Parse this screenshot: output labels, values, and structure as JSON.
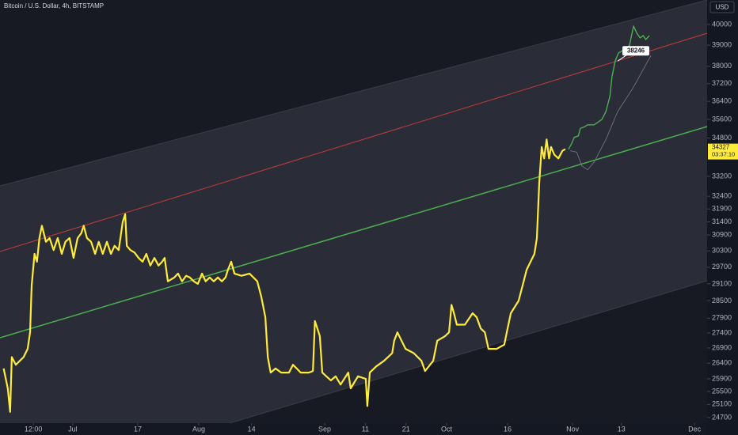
{
  "chart_data": {
    "type": "line",
    "title": "Bitcoin / U.S. Dollar, 4h, BITSTAMP",
    "currency": "USD",
    "log_scale": true,
    "xlim": [
      -17.9,
      156.1
    ],
    "xticks": [
      {
        "value": -9.7,
        "label": "12:00"
      },
      {
        "value": 0,
        "label": "Jul"
      },
      {
        "value": 16,
        "label": "17"
      },
      {
        "value": 31,
        "label": "Aug"
      },
      {
        "value": 44,
        "label": "14"
      },
      {
        "value": 62,
        "label": "Sep"
      },
      {
        "value": 72,
        "label": "11"
      },
      {
        "value": 82,
        "label": "21"
      },
      {
        "value": 92,
        "label": "Oct"
      },
      {
        "value": 107,
        "label": "16"
      },
      {
        "value": 123,
        "label": "Nov"
      },
      {
        "value": 135,
        "label": "13"
      },
      {
        "value": 153,
        "label": "Dec"
      }
    ],
    "ylim": [
      24530,
      41220
    ],
    "yticks": [
      40000,
      39000,
      38000,
      37200,
      36400,
      35600,
      34800,
      33200,
      32400,
      31900,
      31400,
      30900,
      30300,
      29700,
      29100,
      28500,
      27900,
      27400,
      26900,
      26400,
      25900,
      25500,
      25100,
      24700
    ],
    "series": [
      {
        "color": "#ffeb3b",
        "x": [
          -17.0,
          -16.0,
          -15.4,
          -15.0,
          -14.0,
          -12.1,
          -11.1,
          -10.5,
          -10.1,
          -9.4,
          -8.8,
          -8.2,
          -7.6,
          -6.6,
          -5.7,
          -4.7,
          -3.7,
          -2.7,
          -1.8,
          -0.8,
          0.2,
          1.2,
          2.1,
          2.7,
          3.5,
          4.5,
          5.5,
          6.4,
          7.4,
          8.4,
          9.4,
          10.3,
          11.3,
          12.3,
          12.9,
          13.3,
          14.2,
          15.2,
          16.2,
          17.2,
          18.1,
          19.1,
          20.1,
          21.1,
          22.0,
          22.6,
          23.4,
          25.0,
          25.9,
          26.9,
          27.9,
          28.8,
          29.8,
          30.8,
          31.8,
          32.7,
          33.7,
          34.7,
          35.7,
          36.7,
          37.6,
          38.2,
          39.0,
          39.8,
          41.5,
          43.5,
          45.4,
          46.4,
          47.4,
          48.0,
          48.7,
          49.9,
          51.3,
          53.2,
          54.2,
          56.1,
          58.1,
          59.1,
          59.6,
          60.2,
          60.8,
          61.4,
          63.5,
          64.7,
          65.9,
          67.8,
          68.4,
          70.2,
          72.1,
          72.5,
          73.1,
          74.7,
          76.6,
          78.6,
          79.1,
          79.9,
          80.9,
          81.9,
          83.9,
          85.8,
          86.7,
          88.7,
          89.7,
          91.6,
          92.6,
          93.2,
          93.8,
          94.5,
          96.5,
          98.4,
          99.4,
          100.4,
          101.4,
          102.3,
          104.3,
          106.2,
          106.8,
          107.8,
          109.7,
          110.7,
          111.7,
          113.6,
          114.2,
          114.8,
          115.4,
          116.0,
          116.6,
          117.2,
          117.7,
          118.5,
          119.5,
          120.5,
          121.2
        ],
        "values": [
          26230,
          25600,
          24870,
          26600,
          26350,
          26600,
          26870,
          27420,
          29040,
          30190,
          29900,
          30780,
          31250,
          30640,
          30780,
          30330,
          30780,
          30190,
          30640,
          30780,
          30040,
          30780,
          30960,
          31250,
          30780,
          30640,
          30190,
          30640,
          30190,
          30640,
          30190,
          30490,
          30330,
          31400,
          31700,
          30490,
          30330,
          30240,
          30040,
          29900,
          30190,
          29760,
          30040,
          29760,
          29900,
          30040,
          29190,
          29330,
          29470,
          29190,
          29390,
          29330,
          29190,
          29100,
          29470,
          29190,
          29330,
          29190,
          29330,
          29190,
          29330,
          29610,
          29900,
          29470,
          29390,
          29470,
          29190,
          28640,
          27930,
          26600,
          26100,
          26230,
          26100,
          26100,
          26350,
          26100,
          26100,
          26150,
          27800,
          27550,
          27290,
          26100,
          25850,
          25980,
          25720,
          26100,
          25600,
          25980,
          25900,
          25050,
          26100,
          26300,
          26480,
          26730,
          27140,
          27420,
          27140,
          26870,
          26730,
          26480,
          26150,
          26480,
          27140,
          27290,
          27420,
          28360,
          28070,
          27680,
          27680,
          28070,
          27930,
          27550,
          27420,
          26870,
          26870,
          27010,
          27420,
          28070,
          28500,
          29040,
          29610,
          30190,
          30780,
          32940,
          34420,
          33940,
          34740,
          33940,
          34420,
          34100,
          33940,
          34260,
          34327
        ]
      },
      {
        "color": "#4caf50",
        "x": [
          122.0,
          122.8,
          123.4,
          124.4,
          124.9,
          125.9,
          126.7,
          128.3,
          130.2,
          131.2,
          132.2,
          132.7,
          133.5,
          134.3,
          135.3,
          136.1,
          137.0,
          138.0,
          138.8,
          139.6,
          140.4,
          141.0,
          141.9
        ],
        "values": [
          34320,
          34580,
          34830,
          34890,
          35210,
          35280,
          35370,
          35370,
          35600,
          35950,
          36640,
          37520,
          38260,
          38630,
          38740,
          38810,
          39000,
          39920,
          39580,
          39350,
          39460,
          39270,
          39460
        ]
      },
      {
        "color": "#787b86",
        "x": [
          122.4,
          124.0,
          125.3,
          126.7,
          128.3,
          131.2,
          134.1,
          138.0,
          141.0,
          142.3
        ],
        "values": [
          34260,
          34200,
          33630,
          33470,
          33790,
          34740,
          35950,
          37040,
          38070,
          38510
        ]
      }
    ],
    "callout": {
      "value": 38246
    },
    "price_label": {
      "value": 34327,
      "countdown": "03:37:10"
    }
  }
}
